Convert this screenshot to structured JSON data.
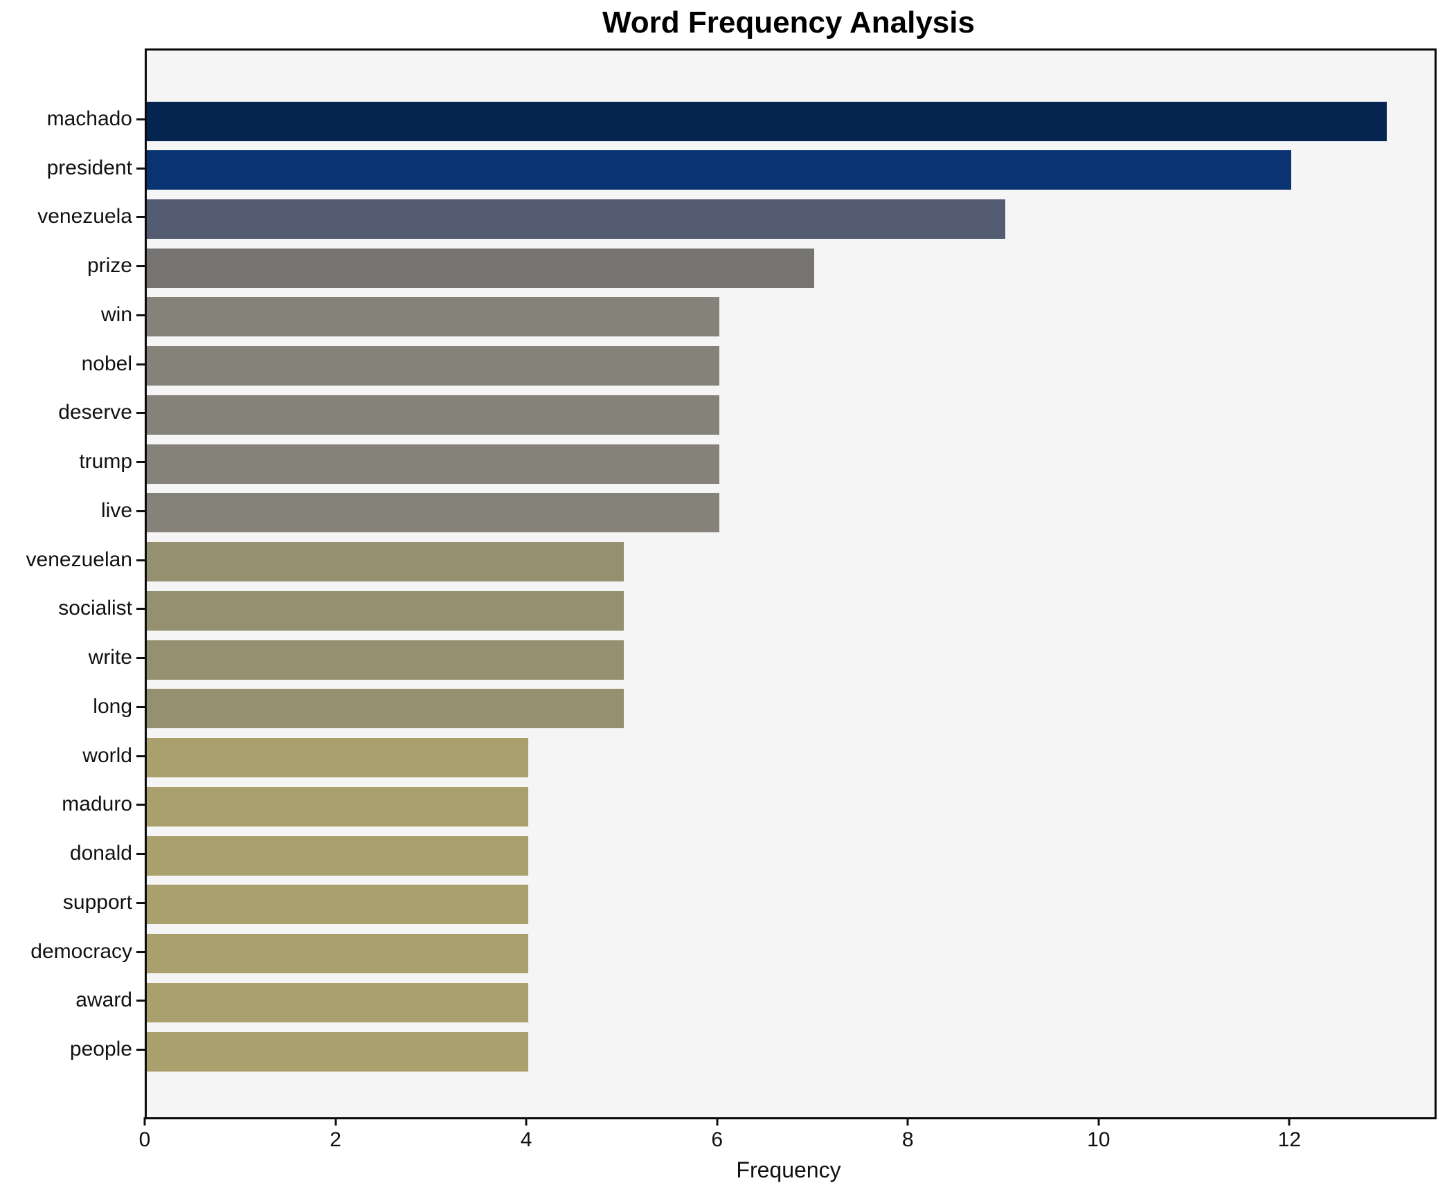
{
  "title": "Word Frequency Analysis",
  "chart_data": {
    "type": "bar",
    "orientation": "horizontal",
    "title": "Word Frequency Analysis",
    "xlabel": "Frequency",
    "ylabel": "",
    "categories": [
      "machado",
      "president",
      "venezuela",
      "prize",
      "win",
      "nobel",
      "deserve",
      "trump",
      "live",
      "venezuelan",
      "socialist",
      "write",
      "long",
      "world",
      "maduro",
      "donald",
      "support",
      "democracy",
      "award",
      "people"
    ],
    "values": [
      13,
      12,
      9,
      7,
      6,
      6,
      6,
      6,
      6,
      5,
      5,
      5,
      5,
      4,
      4,
      4,
      4,
      4,
      4,
      4
    ],
    "bar_colors": [
      "#062450",
      "#0a3371",
      "#545c72",
      "#757472",
      "#858379",
      "#858379",
      "#858379",
      "#858379",
      "#858379",
      "#959170",
      "#959170",
      "#959170",
      "#959170",
      "#a9a06e",
      "#a9a06e",
      "#a9a06e",
      "#a9a06e",
      "#a9a06e",
      "#a9a06e",
      "#a9a06e"
    ],
    "xlim": [
      0,
      13.5
    ],
    "x_ticks": [
      0,
      2,
      4,
      6,
      8,
      10,
      12
    ],
    "grid": false,
    "legend": null,
    "colors": {
      "plot_background": "#f5f5f6",
      "figure_background": "#ffffff",
      "spine": "#0a0a0a",
      "tick_text": "#111111"
    }
  }
}
